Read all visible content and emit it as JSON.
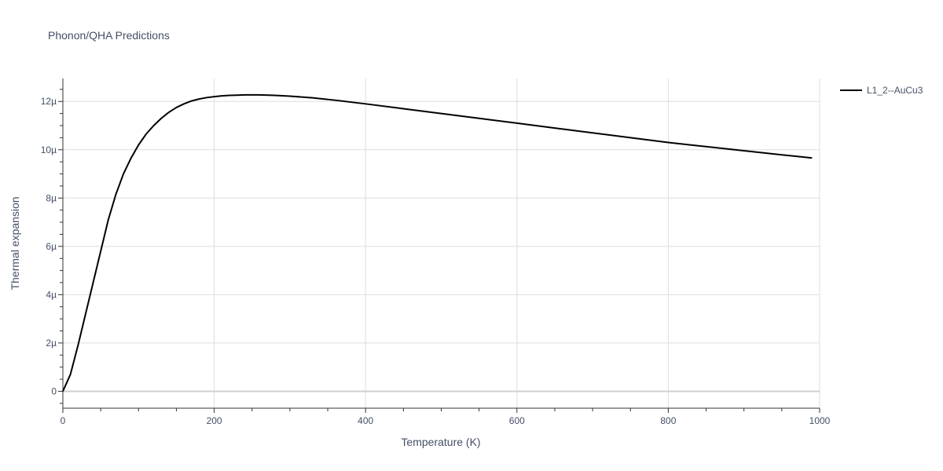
{
  "chart_data": {
    "type": "line",
    "title": "Phonon/QHA Predictions",
    "xlabel": "Temperature (K)",
    "ylabel": "Thermal expansion",
    "xlim": [
      0,
      1000
    ],
    "ylim": [
      -0.7,
      12.95
    ],
    "y_unit_suffix": "µ",
    "x_ticks": [
      0,
      200,
      400,
      600,
      800,
      1000
    ],
    "y_ticks": [
      0,
      2,
      4,
      6,
      8,
      10,
      12
    ],
    "grid": true,
    "legend_position": "top-right",
    "series": [
      {
        "name": "L1_2--AuCu3",
        "color": "#000000",
        "x": [
          0,
          10,
          20,
          30,
          40,
          50,
          60,
          70,
          80,
          90,
          100,
          110,
          120,
          130,
          140,
          150,
          160,
          170,
          180,
          190,
          200,
          210,
          220,
          230,
          240,
          250,
          260,
          280,
          300,
          330,
          360,
          400,
          450,
          500,
          550,
          600,
          650,
          700,
          750,
          800,
          850,
          900,
          950,
          990
        ],
        "y": [
          0,
          0.7,
          1.9,
          3.2,
          4.5,
          5.8,
          7.1,
          8.15,
          9.0,
          9.65,
          10.2,
          10.65,
          11.0,
          11.3,
          11.55,
          11.75,
          11.9,
          12.02,
          12.1,
          12.16,
          12.2,
          12.23,
          12.25,
          12.26,
          12.27,
          12.27,
          12.27,
          12.25,
          12.22,
          12.15,
          12.05,
          11.9,
          11.7,
          11.5,
          11.3,
          11.1,
          10.9,
          10.7,
          10.5,
          10.3,
          10.13,
          9.96,
          9.79,
          9.66
        ]
      }
    ]
  }
}
